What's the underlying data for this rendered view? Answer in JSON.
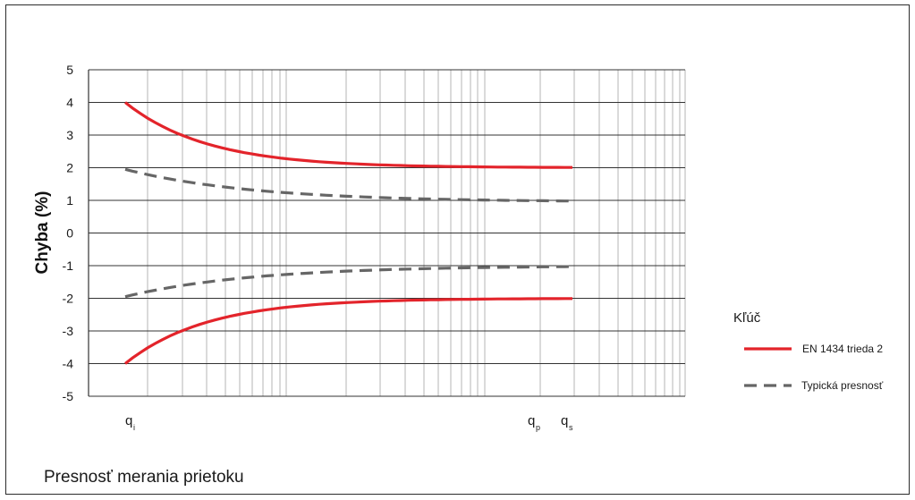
{
  "caption": "Presnosť merania prietoku",
  "colors": {
    "limit": "#e3242b",
    "typical": "#666666",
    "grid": "#b5b5b5",
    "axis": "#333333"
  },
  "chart_data": {
    "type": "line",
    "title": "",
    "ylabel": "Chyba (%)",
    "xlabel": "",
    "xscale": "log",
    "ylim": [
      -5,
      5
    ],
    "yticks": [
      5,
      4,
      3,
      2,
      1,
      0,
      -1,
      -2,
      -3,
      -4,
      -5
    ],
    "x_markers": [
      {
        "label": "q",
        "sub": "i"
      },
      {
        "label": "q",
        "sub": "p"
      },
      {
        "label": "q",
        "sub": "s"
      }
    ],
    "grid": true,
    "legend": {
      "title": "Kľúč",
      "position": "right",
      "entries": [
        {
          "label": "EN 1434 trieda 2",
          "style": "solid"
        },
        {
          "label": "Typická presnosť",
          "style": "dashed"
        }
      ]
    }
  }
}
